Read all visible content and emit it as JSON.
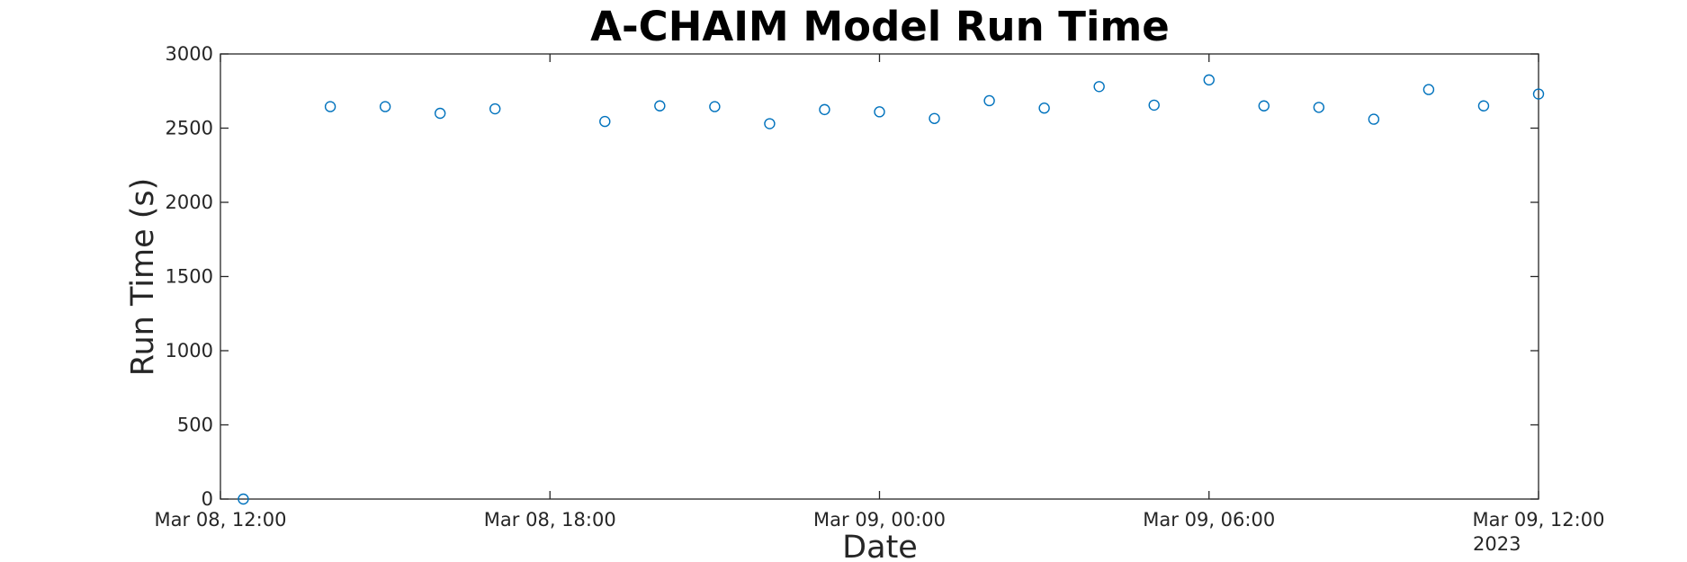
{
  "chart_data": {
    "type": "scatter",
    "title": "A-CHAIM Model Run Time",
    "xlabel": "Date",
    "ylabel": "Run Time (s)",
    "xlim": [
      "2023-03-08 12:00",
      "2023-03-09 12:00"
    ],
    "ylim": [
      0,
      3000
    ],
    "x_ticks": [
      {
        "value": "2023-03-08 12:00",
        "label": "Mar 08, 12:00"
      },
      {
        "value": "2023-03-08 18:00",
        "label": "Mar 08, 18:00"
      },
      {
        "value": "2023-03-09 00:00",
        "label": "Mar 09, 00:00"
      },
      {
        "value": "2023-03-09 06:00",
        "label": "Mar 09, 06:00"
      },
      {
        "value": "2023-03-09 12:00",
        "label": "Mar 09, 12:00"
      }
    ],
    "x_secondary_label": "2023",
    "y_ticks": [
      0,
      500,
      1000,
      1500,
      2000,
      2500,
      3000
    ],
    "grid": false,
    "marker": "circle",
    "color": "#0072BD",
    "series": [
      {
        "x": [
          "2023-03-08 12:25",
          "2023-03-08 14:00",
          "2023-03-08 15:00",
          "2023-03-08 16:00",
          "2023-03-08 17:00",
          "2023-03-08 19:00",
          "2023-03-08 20:00",
          "2023-03-08 21:00",
          "2023-03-08 22:00",
          "2023-03-08 23:00",
          "2023-03-09 00:00",
          "2023-03-09 01:00",
          "2023-03-09 02:00",
          "2023-03-09 03:00",
          "2023-03-09 04:00",
          "2023-03-09 05:00",
          "2023-03-09 06:00",
          "2023-03-09 07:00",
          "2023-03-09 08:00",
          "2023-03-09 09:00",
          "2023-03-09 10:00",
          "2023-03-09 11:00",
          "2023-03-09 12:00"
        ],
        "y": [
          0,
          2645,
          2645,
          2600,
          2630,
          2545,
          2650,
          2645,
          2530,
          2625,
          2610,
          2565,
          2685,
          2635,
          2780,
          2655,
          2825,
          2650,
          2640,
          2560,
          2760,
          2650,
          2730
        ]
      }
    ]
  }
}
